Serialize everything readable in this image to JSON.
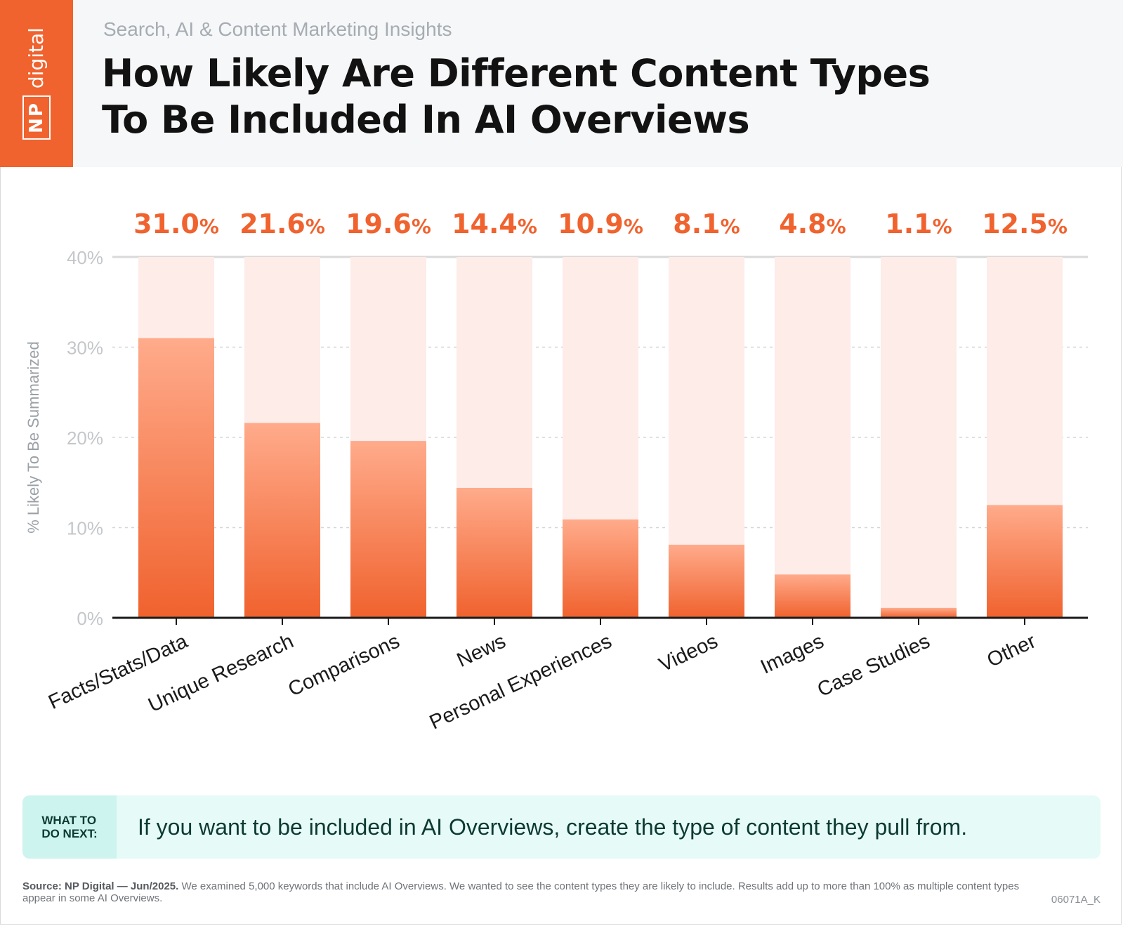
{
  "header": {
    "logo_np": "NP",
    "logo_word": "digital",
    "eyebrow": "Search, AI & Content Marketing Insights",
    "title_line1": "How Likely Are Different Content Types",
    "title_line2": "To Be Included In AI Overviews"
  },
  "chart_data": {
    "type": "bar",
    "ylabel": "% Likely To Be Summarized",
    "ylim": [
      0,
      40
    ],
    "yticks": [
      0,
      10,
      20,
      30,
      40
    ],
    "ytick_labels": [
      "0%",
      "10%",
      "20%",
      "30%",
      "40%"
    ],
    "grid": true,
    "categories": [
      "Facts/Stats/Data",
      "Unique Research",
      "Comparisons",
      "News",
      "Personal Experiences",
      "Videos",
      "Images",
      "Case Studies",
      "Other"
    ],
    "values": [
      31.0,
      21.6,
      19.6,
      14.4,
      10.9,
      8.1,
      4.8,
      1.1,
      12.5
    ],
    "value_labels": [
      "31.0",
      "21.6",
      "19.6",
      "14.4",
      "10.9",
      "8.1",
      "4.8",
      "1.1",
      "12.5"
    ],
    "value_suffix": "%",
    "colors": {
      "bar_top": "#ffab8b",
      "bar_bottom": "#f0622e",
      "bar_track": "#fdece8",
      "value_label": "#f0622e",
      "axis": "#1a1a1a",
      "grid": "#d6d6d6",
      "tick_label": "#c4c7ca"
    }
  },
  "callout": {
    "tag_line1": "WHAT TO",
    "tag_line2": "DO NEXT:",
    "text": "If you want to be included in AI Overviews, create the type of content they pull from."
  },
  "footer": {
    "source_bold": "Source: NP Digital — Jun/2025.",
    "source_text": " We examined 5,000 keywords that include AI Overviews. We wanted to see the content types they are likely to include. Results add up to more than 100% as multiple content types appear in some AI Overviews.",
    "code": "06071A_K"
  }
}
